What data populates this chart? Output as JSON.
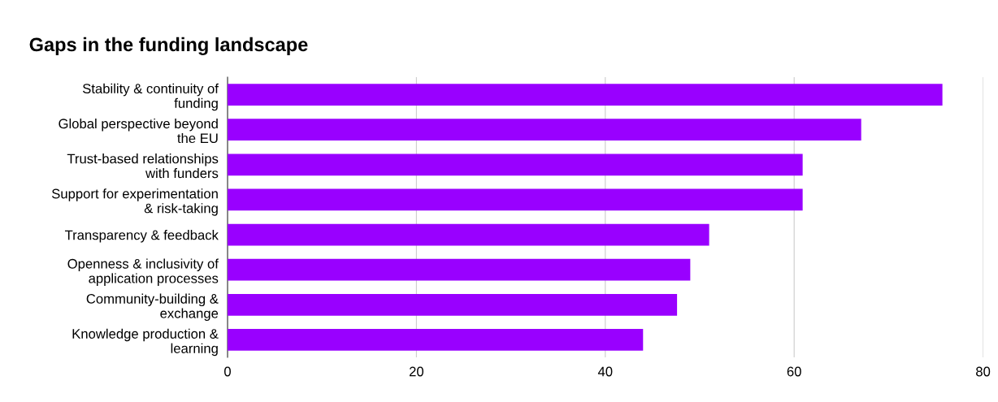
{
  "chart_data": {
    "type": "bar",
    "orientation": "horizontal",
    "title": "Gaps in the funding landscape",
    "categories": [
      "Stability & continuity of\nfunding",
      "Global perspective beyond\nthe EU",
      "Trust-based relationships\nwith funders",
      "Support for experimentation\n& risk-taking",
      "Transparency & feedback",
      "Openness & inclusivity of\napplication processes",
      "Community-building &\nexchange",
      "Knowledge production &\nlearning"
    ],
    "values": [
      75.7,
      67.1,
      60.9,
      60.9,
      51.0,
      49.0,
      47.6,
      44.0
    ],
    "color": "#9900ff",
    "xlim": [
      0,
      80
    ],
    "xticks": [
      0,
      20,
      40,
      60,
      80
    ],
    "grid": "x"
  }
}
